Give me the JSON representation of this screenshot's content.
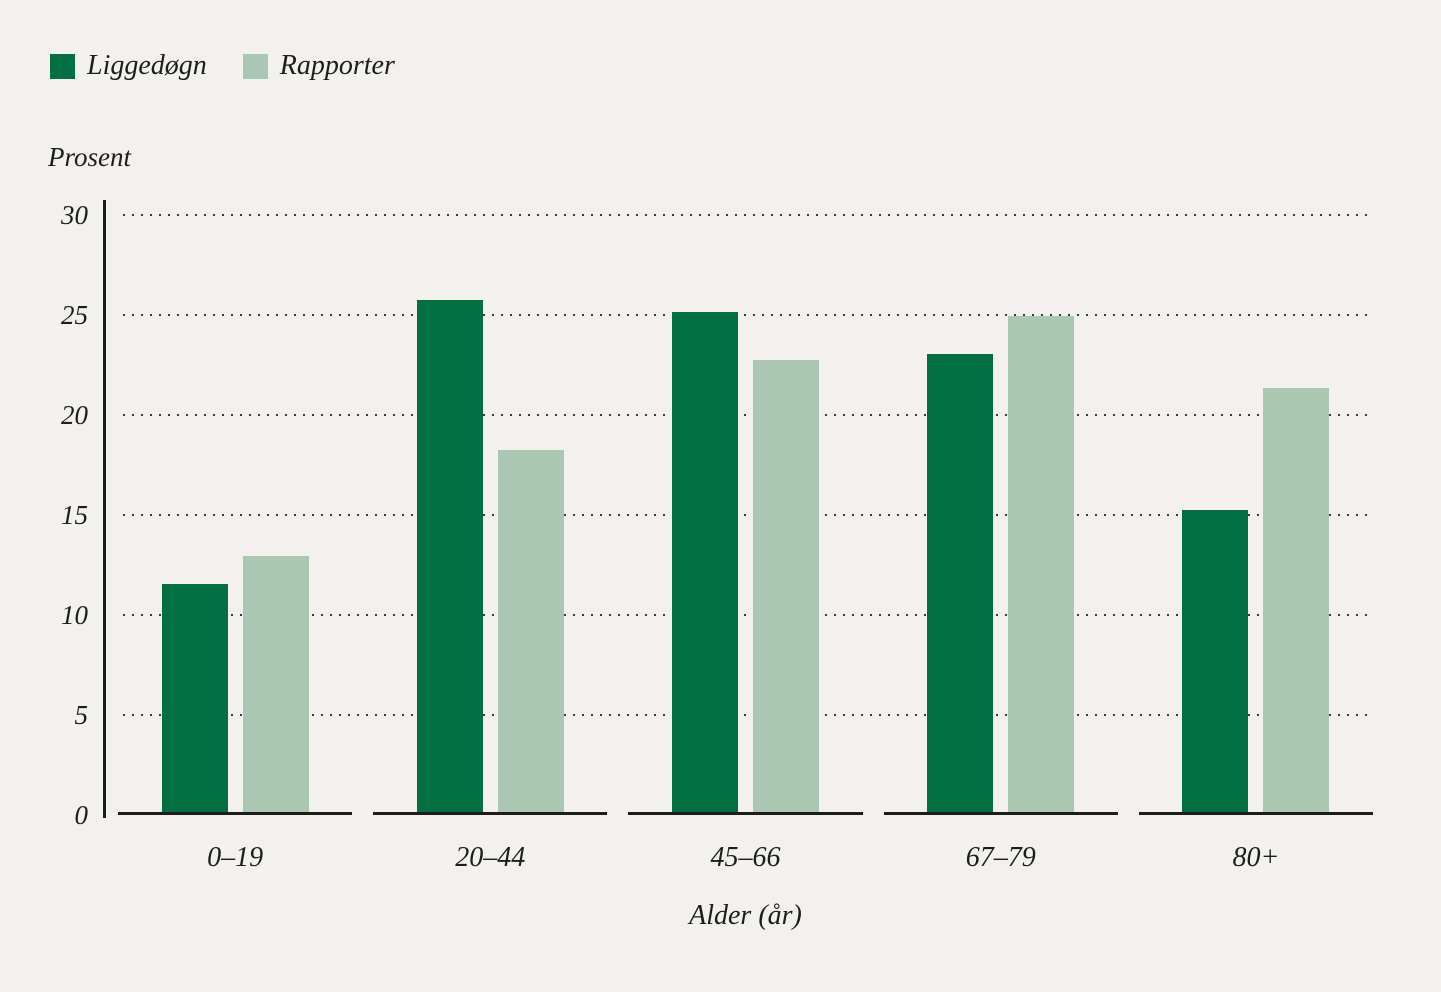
{
  "colors": {
    "background": "#f2f1ed",
    "liggedogn_green": "#016f41",
    "rapporter_green": "#a8c8b4",
    "axis": "#1d1d1b",
    "grid_dots": "#3a3a38",
    "text": "#1d1d1b"
  },
  "legend": {
    "items": [
      {
        "label": "Liggedøgn",
        "color": "#016f41"
      },
      {
        "label": "Rapporter",
        "color": "#a8c8b4"
      }
    ]
  },
  "chart_data": {
    "type": "bar",
    "title": "",
    "ylabel": "Prosent",
    "xlabel": "Alder (år)",
    "categories": [
      "0–19",
      "20–44",
      "45–66",
      "67–79",
      "80+"
    ],
    "series": [
      {
        "name": "Liggedøgn",
        "color": "#016f41",
        "values": [
          11.4,
          25.6,
          25.0,
          22.9,
          15.1
        ]
      },
      {
        "name": "Rapporter",
        "color": "#a8c8b4",
        "values": [
          12.8,
          18.1,
          22.6,
          24.8,
          21.2
        ]
      }
    ],
    "ylim": [
      0,
      30
    ],
    "yticks": [
      0,
      5,
      10,
      15,
      20,
      25,
      30
    ],
    "grid": "horizontal-dotted",
    "legend_position": "top-left"
  }
}
